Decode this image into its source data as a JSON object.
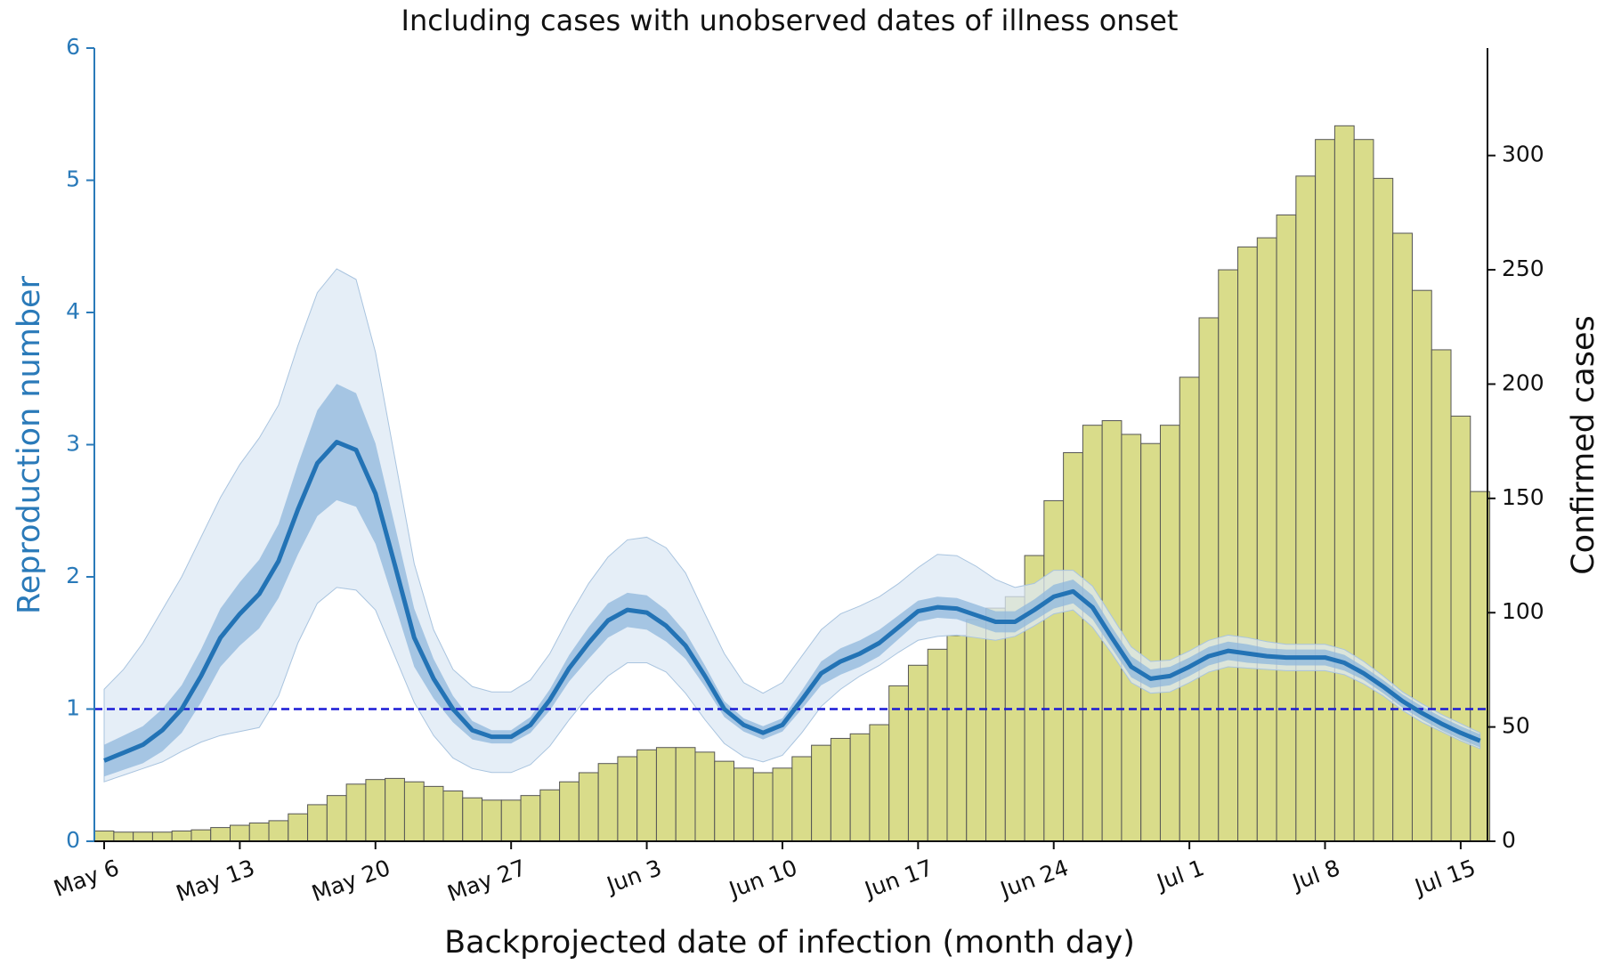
{
  "chart_data": {
    "type": "bar_line",
    "title": "Including cases with unobserved dates of illness onset",
    "xlabel": "Backprojected date of infection (month day)",
    "ylabel": "Reproduction number",
    "y2label": "Confirmed cases",
    "axis_color": "#2a7ab9",
    "categories": [
      "May 6",
      null,
      null,
      null,
      null,
      null,
      null,
      "May 13",
      null,
      null,
      null,
      null,
      null,
      null,
      "May 20",
      null,
      null,
      null,
      null,
      null,
      null,
      "May 27",
      null,
      null,
      null,
      null,
      null,
      null,
      "Jun 3",
      null,
      null,
      null,
      null,
      null,
      null,
      "Jun 10",
      null,
      null,
      null,
      null,
      null,
      null,
      "Jun 17",
      null,
      null,
      null,
      null,
      null,
      null,
      "Jun 24",
      null,
      null,
      null,
      null,
      null,
      null,
      "Jul 1",
      null,
      null,
      null,
      null,
      null,
      null,
      "Jul 8",
      null,
      null,
      null,
      null,
      null,
      null,
      "Jul 15",
      null
    ],
    "ylim": [
      0,
      6
    ],
    "yticks": [
      0,
      1,
      2,
      3,
      4,
      5,
      6
    ],
    "y2lim": [
      0,
      347
    ],
    "y2ticks": [
      0,
      50,
      100,
      150,
      200,
      250,
      300
    ],
    "bars": {
      "axis": "y2",
      "color": "#d9dc8a",
      "edgecolor": "#555555",
      "values": [
        4.5,
        4,
        4,
        4,
        4.5,
        5,
        6,
        7,
        8,
        9,
        12,
        16,
        20,
        25,
        27,
        27.5,
        26,
        24,
        22,
        19,
        18,
        18,
        20,
        22.5,
        26,
        30,
        34,
        37,
        40,
        41,
        41,
        39,
        35,
        32,
        30,
        32,
        37,
        42,
        45,
        47,
        51,
        68,
        77,
        84,
        90,
        97,
        102,
        107,
        125,
        149,
        170,
        182,
        184,
        178,
        174,
        182,
        203,
        229,
        250,
        260,
        264,
        274,
        291,
        307,
        313,
        307,
        290,
        266,
        241,
        215,
        186,
        153
      ]
    },
    "band95": {
      "color": "#dce8f4",
      "edgecolor": "#a9c4df",
      "lower": [
        0.45,
        0.5,
        0.55,
        0.6,
        0.68,
        0.75,
        0.8,
        0.83,
        0.86,
        1.1,
        1.5,
        1.8,
        1.92,
        1.9,
        1.75,
        1.4,
        1.05,
        0.8,
        0.63,
        0.55,
        0.52,
        0.52,
        0.58,
        0.72,
        0.92,
        1.1,
        1.25,
        1.35,
        1.35,
        1.28,
        1.12,
        0.92,
        0.74,
        0.64,
        0.6,
        0.65,
        0.82,
        1.02,
        1.15,
        1.25,
        1.33,
        1.43,
        1.52,
        1.55,
        1.56,
        1.54,
        1.52,
        1.55,
        1.63,
        1.72,
        1.75,
        1.62,
        1.42,
        1.2,
        1.12,
        1.13,
        1.2,
        1.28,
        1.32,
        1.31,
        1.3,
        1.29,
        1.29,
        1.29,
        1.26,
        1.19,
        1.1,
        0.99,
        0.9,
        0.83,
        0.76,
        0.7
      ],
      "upper": [
        1.15,
        1.3,
        1.5,
        1.75,
        2.0,
        2.3,
        2.6,
        2.85,
        3.05,
        3.3,
        3.75,
        4.15,
        4.33,
        4.25,
        3.7,
        2.9,
        2.1,
        1.6,
        1.3,
        1.17,
        1.13,
        1.13,
        1.22,
        1.42,
        1.7,
        1.95,
        2.15,
        2.28,
        2.3,
        2.22,
        2.03,
        1.72,
        1.42,
        1.2,
        1.12,
        1.2,
        1.4,
        1.6,
        1.72,
        1.78,
        1.85,
        1.95,
        2.07,
        2.17,
        2.16,
        2.08,
        1.98,
        1.92,
        1.95,
        2.05,
        2.05,
        1.93,
        1.7,
        1.47,
        1.36,
        1.37,
        1.44,
        1.52,
        1.56,
        1.54,
        1.51,
        1.49,
        1.49,
        1.49,
        1.45,
        1.36,
        1.25,
        1.13,
        1.04,
        0.96,
        0.89,
        0.82
      ]
    },
    "band50": {
      "color": "#8fb7dc",
      "lower": [
        0.49,
        0.54,
        0.59,
        0.68,
        0.82,
        1.05,
        1.32,
        1.48,
        1.61,
        1.84,
        2.17,
        2.46,
        2.58,
        2.53,
        2.25,
        1.79,
        1.32,
        1.08,
        0.9,
        0.77,
        0.74,
        0.74,
        0.82,
        0.99,
        1.21,
        1.38,
        1.54,
        1.62,
        1.6,
        1.51,
        1.38,
        1.17,
        0.94,
        0.83,
        0.77,
        0.83,
        1.0,
        1.18,
        1.26,
        1.32,
        1.4,
        1.53,
        1.66,
        1.69,
        1.68,
        1.63,
        1.58,
        1.58,
        1.67,
        1.76,
        1.8,
        1.68,
        1.46,
        1.24,
        1.16,
        1.18,
        1.25,
        1.33,
        1.37,
        1.35,
        1.34,
        1.33,
        1.33,
        1.33,
        1.29,
        1.22,
        1.12,
        1.01,
        0.92,
        0.84,
        0.77,
        0.71
      ],
      "upper": [
        0.73,
        0.8,
        0.87,
        1.0,
        1.18,
        1.45,
        1.76,
        1.96,
        2.13,
        2.4,
        2.85,
        3.26,
        3.46,
        3.39,
        3.01,
        2.39,
        1.76,
        1.38,
        1.1,
        0.91,
        0.84,
        0.84,
        0.94,
        1.15,
        1.41,
        1.62,
        1.8,
        1.88,
        1.86,
        1.75,
        1.58,
        1.33,
        1.06,
        0.93,
        0.87,
        0.93,
        1.14,
        1.36,
        1.46,
        1.52,
        1.6,
        1.71,
        1.82,
        1.85,
        1.84,
        1.79,
        1.74,
        1.74,
        1.83,
        1.94,
        1.98,
        1.86,
        1.62,
        1.4,
        1.3,
        1.32,
        1.39,
        1.47,
        1.51,
        1.49,
        1.46,
        1.45,
        1.45,
        1.45,
        1.41,
        1.32,
        1.22,
        1.11,
        1.02,
        0.94,
        0.87,
        0.81
      ]
    },
    "line": {
      "color": "#2373b5",
      "values": [
        0.61,
        0.67,
        0.73,
        0.84,
        1.0,
        1.25,
        1.54,
        1.72,
        1.87,
        2.12,
        2.51,
        2.86,
        3.02,
        2.96,
        2.63,
        2.09,
        1.54,
        1.23,
        1.0,
        0.84,
        0.79,
        0.79,
        0.88,
        1.07,
        1.31,
        1.5,
        1.67,
        1.75,
        1.73,
        1.63,
        1.48,
        1.25,
        1.0,
        0.88,
        0.82,
        0.88,
        1.07,
        1.27,
        1.36,
        1.42,
        1.5,
        1.62,
        1.74,
        1.77,
        1.76,
        1.71,
        1.66,
        1.66,
        1.75,
        1.85,
        1.89,
        1.77,
        1.54,
        1.32,
        1.23,
        1.25,
        1.32,
        1.4,
        1.44,
        1.42,
        1.4,
        1.39,
        1.39,
        1.39,
        1.35,
        1.27,
        1.17,
        1.06,
        0.97,
        0.89,
        0.82,
        0.76
      ]
    },
    "reference_line": {
      "value": 1,
      "color": "#1a1ad6",
      "dashed": true
    }
  }
}
